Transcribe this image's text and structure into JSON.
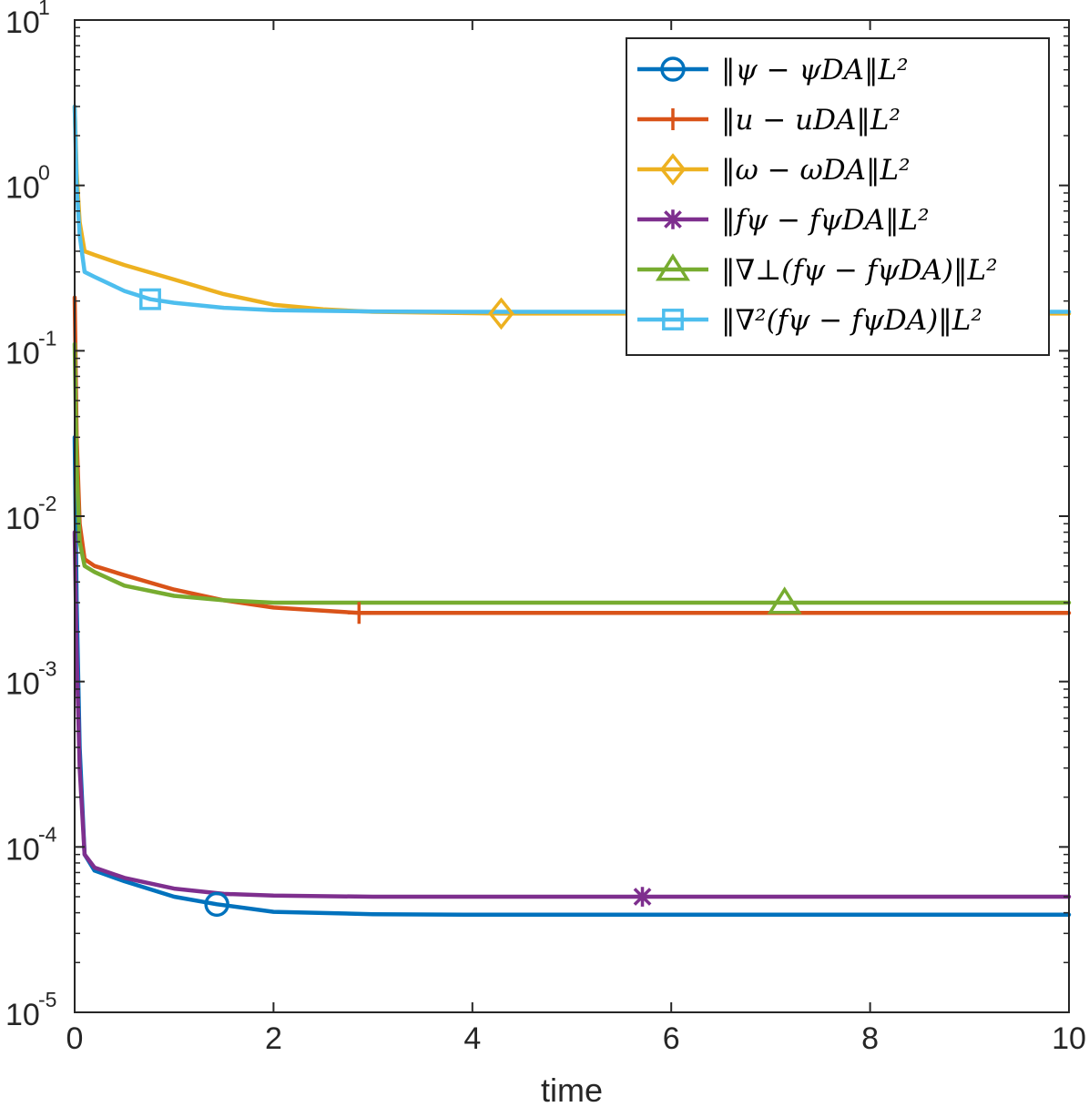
{
  "chart_data": {
    "type": "line",
    "title": "",
    "xlabel": "time",
    "ylabel": "",
    "xlim": [
      0,
      10
    ],
    "ylim": [
      1e-05,
      10
    ],
    "yscale": "log",
    "grid": false,
    "legend_position": "top-right",
    "x_ticks": [
      {
        "value": 0,
        "label": "0"
      },
      {
        "value": 2,
        "label": "2"
      },
      {
        "value": 4,
        "label": "4"
      },
      {
        "value": 6,
        "label": "6"
      },
      {
        "value": 8,
        "label": "8"
      },
      {
        "value": 10,
        "label": "10"
      }
    ],
    "y_ticks": [
      {
        "value": 10,
        "base": "10",
        "exp": "1"
      },
      {
        "value": 1,
        "base": "10",
        "exp": "0"
      },
      {
        "value": 0.1,
        "base": "10",
        "exp": "-1"
      },
      {
        "value": 0.01,
        "base": "10",
        "exp": "-2"
      },
      {
        "value": 0.001,
        "base": "10",
        "exp": "-3"
      },
      {
        "value": 0.0001,
        "base": "10",
        "exp": "-4"
      },
      {
        "value": 1e-05,
        "base": "10",
        "exp": "-5"
      }
    ],
    "series": [
      {
        "name": "||ψ − ψ_DA||_L²",
        "legend": "‖ψ − ψDA‖L²",
        "color": "#0072BD",
        "marker": "circle",
        "x": [
          0,
          0.02,
          0.05,
          0.1,
          0.2,
          0.5,
          1.0,
          1.43,
          2.0,
          3.0,
          4.0,
          6.0,
          8.0,
          10.0
        ],
        "y": [
          0.03,
          0.003,
          0.0004,
          9e-05,
          7.2e-05,
          6.2e-05,
          5e-05,
          4.5e-05,
          4.05e-05,
          3.92e-05,
          3.89e-05,
          3.89e-05,
          3.89e-05,
          3.89e-05
        ],
        "marker_points": [
          {
            "x": 1.43,
            "y": 4.5e-05
          }
        ]
      },
      {
        "name": "||u − u_DA||_L²",
        "legend": "‖u − uDA‖L²",
        "color": "#D95319",
        "marker": "plus",
        "x": [
          0,
          0.02,
          0.05,
          0.1,
          0.2,
          0.5,
          1.0,
          1.5,
          2.0,
          2.86,
          4.0,
          6.0,
          8.0,
          10.0
        ],
        "y": [
          0.21,
          0.03,
          0.009,
          0.0055,
          0.005,
          0.0044,
          0.0036,
          0.0031,
          0.0028,
          0.0026,
          0.0026,
          0.0026,
          0.0026,
          0.0026
        ],
        "marker_points": [
          {
            "x": 2.86,
            "y": 0.0026
          }
        ]
      },
      {
        "name": "||ω − ω_DA||_L²",
        "legend": "‖ω − ωDA‖L²",
        "color": "#EDB120",
        "marker": "diamond",
        "x": [
          0,
          0.02,
          0.05,
          0.1,
          0.2,
          0.5,
          1.0,
          1.5,
          2.0,
          2.5,
          3.0,
          4.29,
          6.0,
          8.0,
          10.0
        ],
        "y": [
          3.0,
          1.2,
          0.6,
          0.4,
          0.38,
          0.33,
          0.27,
          0.22,
          0.19,
          0.178,
          0.172,
          0.168,
          0.168,
          0.168,
          0.168
        ],
        "marker_points": [
          {
            "x": 4.29,
            "y": 0.168
          }
        ]
      },
      {
        "name": "||f^ψ − f^ψ_DA||_L²",
        "legend": "‖fψ − fψDA‖L²",
        "color": "#7E2F8E",
        "marker": "asterisk",
        "x": [
          0,
          0.02,
          0.05,
          0.1,
          0.2,
          0.5,
          1.0,
          1.5,
          2.0,
          3.0,
          4.0,
          5.71,
          8.0,
          10.0
        ],
        "y": [
          0.008,
          0.0015,
          0.0003,
          9e-05,
          7.5e-05,
          6.5e-05,
          5.6e-05,
          5.2e-05,
          5.08e-05,
          5e-05,
          5e-05,
          5e-05,
          5e-05,
          5e-05
        ],
        "marker_points": [
          {
            "x": 5.71,
            "y": 5e-05
          }
        ]
      },
      {
        "name": "||∇⊥(f^ψ − f^ψ_DA)||_L²",
        "legend": "‖∇⊥(fψ − fψDA)‖L²",
        "color": "#77AC30",
        "marker": "triangle",
        "x": [
          0,
          0.02,
          0.05,
          0.1,
          0.2,
          0.5,
          1.0,
          1.5,
          2.0,
          3.0,
          4.0,
          6.0,
          7.14,
          8.0,
          10.0
        ],
        "y": [
          0.11,
          0.02,
          0.007,
          0.005,
          0.0046,
          0.0038,
          0.0033,
          0.0031,
          0.003,
          0.003,
          0.003,
          0.003,
          0.003,
          0.003,
          0.003
        ],
        "marker_points": [
          {
            "x": 7.14,
            "y": 0.003
          }
        ]
      },
      {
        "name": "||∇²(f^ψ − f^ψ_DA)||_L²",
        "legend": "‖∇²(fψ − fψDA)‖L²",
        "color": "#4DBEEE",
        "marker": "square",
        "x": [
          0,
          0.02,
          0.05,
          0.1,
          0.2,
          0.5,
          0.76,
          1.0,
          1.5,
          2.0,
          3.0,
          4.0,
          6.0,
          8.0,
          10.0
        ],
        "y": [
          3.0,
          1.0,
          0.5,
          0.3,
          0.28,
          0.23,
          0.205,
          0.195,
          0.182,
          0.176,
          0.173,
          0.172,
          0.172,
          0.172,
          0.172
        ],
        "marker_points": [
          {
            "x": 0.76,
            "y": 0.205
          }
        ]
      }
    ]
  }
}
